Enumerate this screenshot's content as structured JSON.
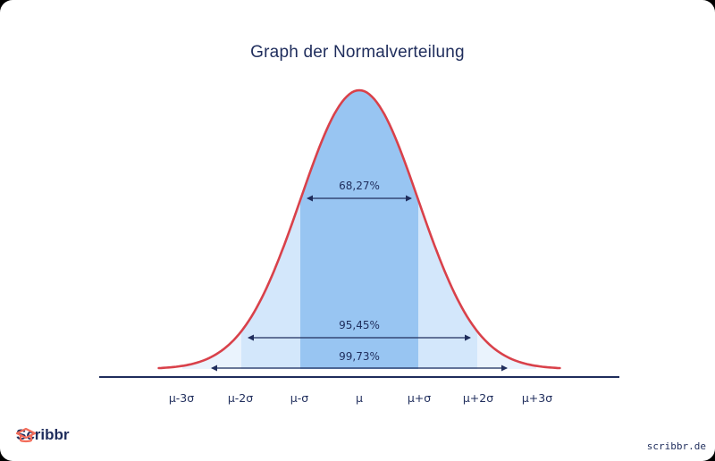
{
  "chart_data": {
    "type": "area",
    "title": "Graph der Normalverteilung",
    "distribution": "normal",
    "x_range_sigma": [
      -3.4,
      3.4
    ],
    "tick_labels": [
      "μ-3σ",
      "μ-2σ",
      "μ-σ",
      "μ",
      "μ+σ",
      "μ+2σ",
      "μ+3σ"
    ],
    "tick_positions_sigma": [
      -3,
      -2,
      -1,
      0,
      1,
      2,
      3
    ],
    "bands": [
      {
        "label": "68,27%",
        "from_sigma": -1,
        "to_sigma": 1,
        "fill": "#98c5f2"
      },
      {
        "label": "95,45%",
        "from_sigma": -2,
        "to_sigma": 2,
        "fill": "#d3e7fb"
      },
      {
        "label": "99,73%",
        "from_sigma": -3,
        "to_sigma": 3,
        "fill": "#eaf3fd"
      }
    ],
    "curve_color": "#d9414a",
    "text_color": "#1f2d5c",
    "grid": false,
    "legend": "none"
  },
  "footer": {
    "brand": "Scribbr",
    "url": "scribbr.de",
    "brand_icon": "graduation-cap-icon",
    "brand_color": "#f26c5a"
  }
}
